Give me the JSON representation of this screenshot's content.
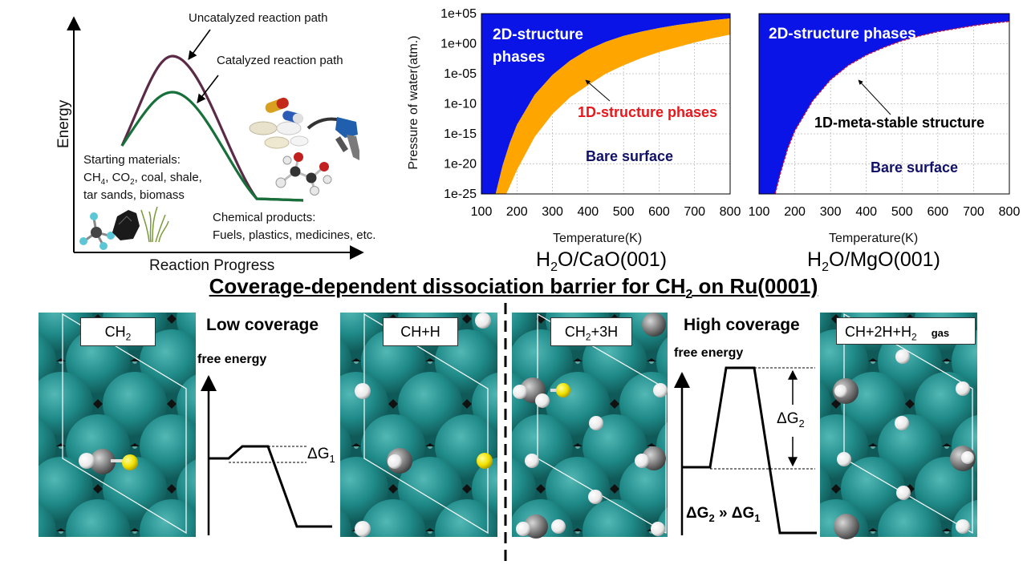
{
  "energy_diagram": {
    "y_axis_label": "Energy",
    "x_axis_label": "Reaction Progress",
    "uncatalyzed_label": "Uncatalyzed reaction path",
    "catalyzed_label": "Catalyzed reaction path",
    "starting_title": "Starting materials:",
    "starting_line1_a": "CH",
    "starting_line1_sub1": "4",
    "starting_line1_b": ", CO",
    "starting_line1_sub2": "2",
    "starting_line1_c": ", coal, shale,",
    "starting_line2": "tar sands, biomass",
    "products_title": "Chemical products:",
    "products_line": "Fuels, plastics, medicines, etc.",
    "colors": {
      "uncatalyzed": "#5b2a47",
      "catalyzed": "#17703a"
    }
  },
  "chart_data": [
    {
      "type": "area",
      "system": "H2O/CaO(001)",
      "system_label_a": "H",
      "system_label_sub": "2",
      "system_label_b": "O/CaO(001)",
      "xlabel": "Temperature(K)",
      "ylabel": "Pressure of water(atm.)",
      "xlim": [
        100,
        800
      ],
      "ylim_log10": [
        -25,
        5
      ],
      "x_ticks": [
        "100",
        "200",
        "300",
        "400",
        "500",
        "600",
        "700",
        "800"
      ],
      "y_ticks": [
        "1e-25",
        "1e-20",
        "1e-15",
        "1e-10",
        "1e-05",
        "1e+00",
        "1e+05"
      ],
      "grid": true,
      "regions": [
        {
          "name": "2D-structure phases",
          "color": "#0a14e6"
        },
        {
          "name": "1D-structure phases",
          "color": "#ffa500"
        },
        {
          "name": "Bare surface",
          "color": "#ffffff"
        }
      ],
      "boundaries": {
        "upper_x": [
          140,
          160,
          180,
          200,
          250,
          300,
          350,
          400,
          450,
          500,
          550,
          600,
          650,
          700,
          750,
          800
        ],
        "upper_log10p": [
          -25,
          -20.2,
          -16.5,
          -13.5,
          -8.5,
          -5.2,
          -2.8,
          -1.0,
          0.3,
          1.3,
          2.0,
          2.6,
          3.1,
          3.5,
          3.9,
          4.2
        ],
        "lower_x": [
          170,
          200,
          250,
          300,
          350,
          400,
          450,
          500,
          550,
          600,
          650,
          700,
          750,
          800
        ],
        "lower_log10p": [
          -25,
          -21.0,
          -15.5,
          -11.7,
          -8.9,
          -6.9,
          -5.0,
          -3.6,
          -2.4,
          -1.4,
          -0.6,
          0.2,
          0.9,
          1.5
        ]
      },
      "annotations": {
        "region_2d": "2D-structure\nphases",
        "region_1d": "1D-structure phases",
        "region_bare": "Bare surface"
      },
      "annotation_colors": {
        "region_1d": "#e8171b",
        "region_bare": "#11116a"
      }
    },
    {
      "type": "area",
      "system": "H2O/MgO(001)",
      "system_label_a": "H",
      "system_label_sub": "2",
      "system_label_b": "O/MgO(001)",
      "xlabel": "Temperature(K)",
      "xlim": [
        100,
        800
      ],
      "ylim_log10": [
        -25,
        5
      ],
      "x_ticks": [
        "100",
        "200",
        "300",
        "400",
        "500",
        "600",
        "700",
        "800"
      ],
      "grid": true,
      "regions": [
        {
          "name": "2D-structure phases",
          "color": "#0a14e6"
        },
        {
          "name": "Bare surface",
          "color": "#ffffff"
        }
      ],
      "boundaries": {
        "x": [
          145,
          160,
          180,
          200,
          250,
          300,
          350,
          400,
          450,
          500,
          550,
          600,
          650,
          700,
          750,
          800
        ],
        "log10p": [
          -25,
          -21.5,
          -17.5,
          -14.5,
          -9.5,
          -6.0,
          -3.6,
          -1.9,
          -0.6,
          0.5,
          1.3,
          2.0,
          2.5,
          3.0,
          3.4,
          3.7
        ]
      },
      "annotations": {
        "region_2d": "2D-structure phases",
        "region_meta": "1D-meta-stable structure",
        "region_bare": "Bare surface"
      },
      "annotation_colors": {
        "region_bare": "#11116a",
        "meta_line": "#c0134b"
      }
    }
  ],
  "title": {
    "text_a": "Coverage-dependent dissociation barrier for CH",
    "sub": "2",
    "text_b": " on Ru(0001)"
  },
  "low_coverage": {
    "heading": "Low coverage",
    "panel1_label_a": "CH",
    "panel1_label_sub": "2",
    "panel2_label": "CH+H",
    "axis_label": "free energy",
    "dg_a": "ΔG",
    "dg_sub": "1"
  },
  "high_coverage": {
    "heading": "High coverage",
    "panel1_label_a": "CH",
    "panel1_label_sub": "2",
    "panel1_label_b": "+3H",
    "panel2_label_a": "CH+2H+H",
    "panel2_label_sub": "2",
    "panel2_label_gas": "gas",
    "axis_label": "free energy",
    "dg_a": "ΔG",
    "dg_sub": "2",
    "compare_a": "ΔG",
    "compare_sub1": "2",
    "compare_mid": " » ΔG",
    "compare_sub2": "1"
  },
  "atom_colors": {
    "ru": "#1f8a88",
    "carbon": "#808080",
    "hydrogen": "#ffffff",
    "vacancy": "#111111",
    "tag": "#f0e000"
  }
}
